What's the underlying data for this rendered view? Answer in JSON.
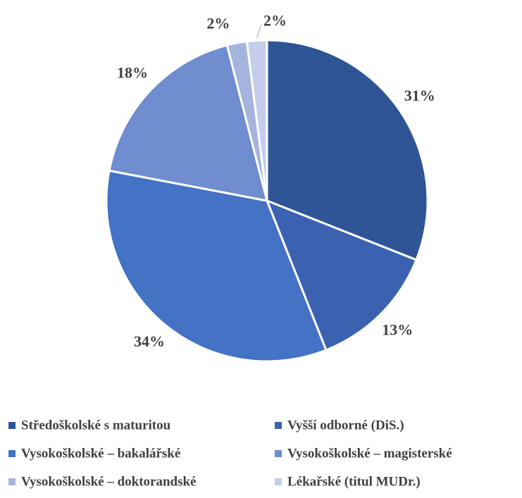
{
  "chart_data": {
    "type": "pie",
    "categories": [
      "Středoškolské s maturitou",
      "Vyšší odborné (DiS.)",
      "Vysokoškolské – bakalářské",
      "Vysokoškolské – magisterské",
      "Vysokoškolské – doktorandské",
      "Lékařské (titul MUDr.)"
    ],
    "values": [
      31,
      13,
      34,
      18,
      2,
      2
    ],
    "value_labels": [
      "31%",
      "13%",
      "34%",
      "18%",
      "2%",
      "2%"
    ],
    "colors": [
      "#2f5597",
      "#3a62b0",
      "#4472c4",
      "#6f8dcf",
      "#a5b4dd",
      "#c4cde9"
    ],
    "legend": "bottom"
  }
}
